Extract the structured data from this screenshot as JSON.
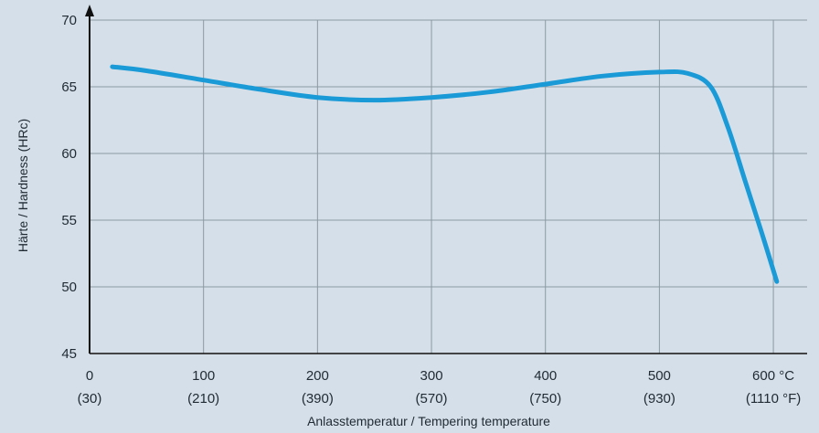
{
  "chart_data": {
    "type": "line",
    "xlabel": "Anlasstemperatur / Tempering temperature",
    "ylabel": "Härte / Hardness (HRc)",
    "xlim": [
      0,
      620
    ],
    "ylim": [
      45,
      70
    ],
    "grid": true,
    "x_ticks": [
      {
        "value": 0,
        "celsius": "0",
        "fahrenheit": "(30)"
      },
      {
        "value": 100,
        "celsius": "100",
        "fahrenheit": "(210)"
      },
      {
        "value": 200,
        "celsius": "200",
        "fahrenheit": "(390)"
      },
      {
        "value": 300,
        "celsius": "300",
        "fahrenheit": "(570)"
      },
      {
        "value": 400,
        "celsius": "400",
        "fahrenheit": "(750)"
      },
      {
        "value": 500,
        "celsius": "500",
        "fahrenheit": "(930)"
      },
      {
        "value": 600,
        "celsius": "600 °C",
        "fahrenheit": "(1110 °F)"
      }
    ],
    "y_ticks": [
      45,
      50,
      55,
      60,
      65,
      70
    ],
    "series": [
      {
        "color": "#1a9ad6",
        "x": [
          20,
          50,
          100,
          150,
          200,
          250,
          300,
          350,
          400,
          450,
          500,
          525,
          545,
          560,
          575,
          590,
          603
        ],
        "y": [
          66.5,
          66.2,
          65.5,
          64.8,
          64.2,
          64.0,
          64.2,
          64.6,
          65.2,
          65.8,
          66.1,
          66.0,
          65.0,
          62.0,
          58.0,
          54.0,
          50.4
        ]
      }
    ]
  }
}
